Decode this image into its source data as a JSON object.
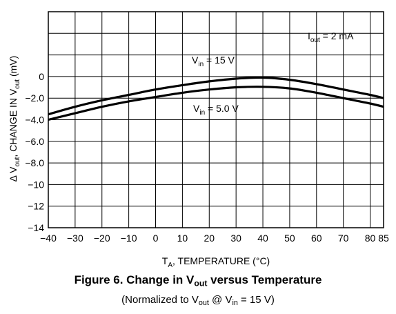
{
  "chart_data": {
    "type": "line",
    "title": "Figure 6. Change in V",
    "title_sub": "out",
    "title_rest": " versus Temperature",
    "subtitle_pre": "(Normalized to V",
    "subtitle_sub1": "out",
    "subtitle_mid": " @ V",
    "subtitle_sub2": "in",
    "subtitle_post": " = 15 V)",
    "xlabel_pre": "T",
    "xlabel_sub": "A",
    "xlabel_post": ", TEMPERATURE (°C)",
    "ylabel_pre": "Δ V",
    "ylabel_sub1": "out",
    "ylabel_mid": ", CHANGE IN V",
    "ylabel_sub2": "out",
    "ylabel_post": " (mV)",
    "xlim": [
      -40,
      85
    ],
    "ylim": [
      -14,
      6
    ],
    "x_ticks": [
      -40,
      -30,
      -20,
      -10,
      0,
      10,
      20,
      30,
      40,
      50,
      60,
      70,
      80,
      85
    ],
    "x_tick_labels": [
      "−40",
      "−30",
      "−20",
      "−10",
      "0",
      "10",
      "20",
      "30",
      "40",
      "50",
      "60",
      "70",
      "80",
      "85"
    ],
    "y_ticks": [
      0,
      -2,
      -4,
      -6,
      -8,
      -10,
      -12,
      -14
    ],
    "y_tick_labels": [
      "0",
      "−2.0",
      "−4.0",
      "−6.0",
      "−8.0",
      "−10",
      "−12",
      "−14"
    ],
    "grid": true,
    "series": [
      {
        "name_pre": "V",
        "name_sub": "in",
        "name_post": " = 15 V",
        "x": [
          -40,
          -30,
          -20,
          -10,
          0,
          10,
          20,
          30,
          40,
          50,
          60,
          70,
          80,
          85
        ],
        "y": [
          -3.5,
          -2.8,
          -2.2,
          -1.7,
          -1.2,
          -0.8,
          -0.45,
          -0.2,
          -0.1,
          -0.3,
          -0.7,
          -1.2,
          -1.7,
          -2.0
        ]
      },
      {
        "name_pre": "V",
        "name_sub": "in",
        "name_post": " = 5.0 V",
        "x": [
          -40,
          -30,
          -20,
          -10,
          0,
          10,
          20,
          30,
          40,
          50,
          60,
          70,
          80,
          85
        ],
        "y": [
          -4.0,
          -3.4,
          -2.8,
          -2.3,
          -1.9,
          -1.5,
          -1.2,
          -1.0,
          -0.95,
          -1.1,
          -1.5,
          -2.0,
          -2.5,
          -2.8
        ]
      }
    ],
    "annotation": {
      "pre": "I",
      "sub": "out",
      "post": " = 2 mA"
    }
  }
}
